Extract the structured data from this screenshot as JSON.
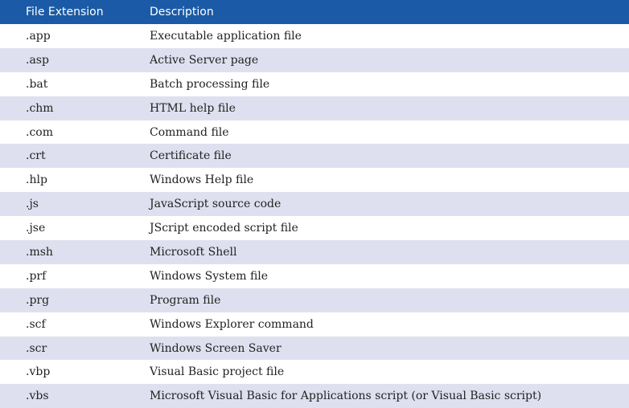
{
  "table": {
    "header": [
      "File Extension",
      "Description"
    ],
    "rows": [
      [
        ".app",
        "Executable application file"
      ],
      [
        ".asp",
        "Active Server page"
      ],
      [
        ".bat",
        "Batch processing file"
      ],
      [
        ".chm",
        "HTML help file"
      ],
      [
        ".com",
        "Command file"
      ],
      [
        ".crt",
        "Certificate file"
      ],
      [
        ".hlp",
        "Windows Help file"
      ],
      [
        ".js",
        "JavaScript source code"
      ],
      [
        ".jse",
        "JScript encoded script file"
      ],
      [
        ".msh",
        "Microsoft Shell"
      ],
      [
        ".prf",
        "Windows System file"
      ],
      [
        ".prg",
        "Program file"
      ],
      [
        ".scf",
        "Windows Explorer command"
      ],
      [
        ".scr",
        "Windows Screen Saver"
      ],
      [
        ".vbp",
        "Visual Basic project file"
      ],
      [
        ".vbs",
        "Microsoft Visual Basic for Applications script (or Visual Basic script)"
      ]
    ]
  }
}
